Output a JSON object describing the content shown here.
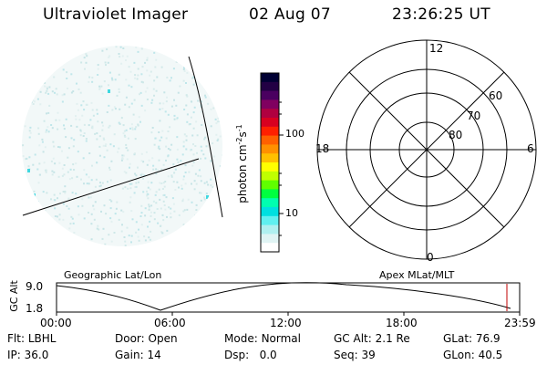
{
  "header": {
    "instrument": "Ultraviolet Imager",
    "date": "02 Aug 07",
    "time": "23:26:25 UT"
  },
  "colorbar": {
    "unit_label": "photon cm",
    "unit_exp1": "-2",
    "unit_mid": "s",
    "unit_exp2": "-1",
    "tick_100": "100",
    "tick_10": "10",
    "colors": [
      "#000033",
      "#220044",
      "#4a0060",
      "#800060",
      "#b00040",
      "#d80020",
      "#ff2000",
      "#ff6000",
      "#ff9000",
      "#ffc000",
      "#ffff00",
      "#c0ff00",
      "#60ff00",
      "#00ff40",
      "#00ffb0",
      "#00e0e0",
      "#60f0f0",
      "#b0f0f0",
      "#e0f4f4",
      "#ffffff"
    ]
  },
  "polar_plot": {
    "mlt_top": "12",
    "mlt_left": "18",
    "mlt_right": "6",
    "mlt_bottom": "0",
    "lat_60": "60",
    "lat_70": "70",
    "lat_80": "80"
  },
  "timeline": {
    "left_title": "Geographic Lat/Lon",
    "right_title": "Apex MLat/MLT",
    "y_axis_label": "GC Alt",
    "y_high": "9.0",
    "y_low": "1.8",
    "x_ticks": [
      "00:00",
      "06:00",
      "12:00",
      "18:00",
      "23:59"
    ]
  },
  "status": {
    "flt_label": "Flt:",
    "flt_value": "LBHL",
    "ip_label": "IP:",
    "ip_value": "36.0",
    "door_label": "Door:",
    "door_value": "Open",
    "gain_label": "Gain:",
    "gain_value": "14",
    "mode_label": "Mode:",
    "mode_value": "Normal",
    "dsp_label": "Dsp:",
    "dsp_value": "0.0",
    "gcalt_label": "GC Alt:",
    "gcalt_value": "2.1 Re",
    "seq_label": "Seq:",
    "seq_value": "39",
    "glat_label": "GLat:",
    "glat_value": "76.9",
    "glon_label": "GLon:",
    "glon_value": "40.5"
  }
}
